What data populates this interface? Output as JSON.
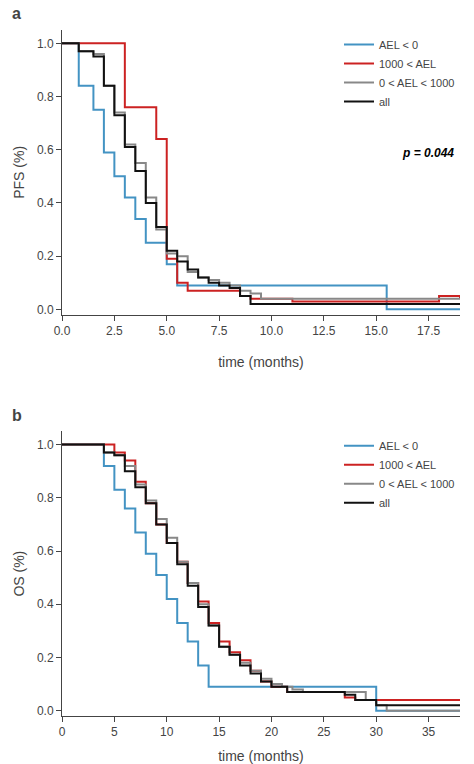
{
  "chart_data": [
    {
      "type": "line",
      "line_style": "step",
      "title": "a",
      "x_label": "time (months)",
      "y_label": "PFS (%)",
      "xlim": [
        0,
        19
      ],
      "ylim": [
        -0.02,
        1.05
      ],
      "xticks": [
        {
          "value": 0,
          "label": "0.0"
        },
        2.5,
        {
          "value": 5,
          "label": "5.0"
        },
        7.5,
        {
          "value": 10,
          "label": "10.0"
        },
        12.5,
        {
          "value": 15,
          "label": "15.0"
        },
        17.5
      ],
      "yticks": [
        {
          "value": 0,
          "label": "0.0"
        },
        0.2,
        0.4,
        0.6,
        0.8,
        {
          "value": 1,
          "label": "1.0"
        }
      ],
      "grid": false,
      "legend": "upper right",
      "annotations": [
        "p = 0.044"
      ],
      "series": [
        {
          "name": "AEL < 0",
          "color": "#4393C3",
          "x": [
            0,
            0.8,
            1.5,
            2.0,
            2.5,
            3.0,
            3.5,
            4.0,
            5.0,
            5.5,
            6.0,
            15.0,
            15.5,
            19
          ],
          "values": [
            1.0,
            0.84,
            0.75,
            0.59,
            0.5,
            0.42,
            0.34,
            0.25,
            0.17,
            0.09,
            0.09,
            0.09,
            0.0,
            0.0
          ]
        },
        {
          "name": "1000 < AEL",
          "color": "#CC2222",
          "x": [
            0,
            2.5,
            3.0,
            4.5,
            5.0,
            5.5,
            6.0,
            7.5,
            8.5,
            9.0,
            10.5,
            11.0,
            18.0,
            19
          ],
          "values": [
            1.0,
            1.0,
            0.76,
            0.64,
            0.19,
            0.1,
            0.07,
            0.07,
            0.05,
            0.04,
            0.04,
            0.03,
            0.05,
            0.04
          ]
        },
        {
          "name": "0 < AEL < 1000",
          "color": "#888888",
          "x": [
            0,
            0.8,
            1.5,
            2.0,
            2.5,
            3.0,
            3.5,
            4.0,
            4.5,
            5.0,
            5.5,
            6.0,
            6.5,
            7.0,
            7.5,
            8.0,
            8.5,
            9.0,
            9.5,
            10.0,
            19
          ],
          "values": [
            1.0,
            0.97,
            0.96,
            0.84,
            0.74,
            0.62,
            0.55,
            0.42,
            0.3,
            0.21,
            0.2,
            0.14,
            0.12,
            0.11,
            0.1,
            0.09,
            0.07,
            0.06,
            0.04,
            0.04,
            0.04
          ]
        },
        {
          "name": "all",
          "color": "#111111",
          "x": [
            0,
            0.8,
            1.5,
            2.0,
            2.5,
            3.0,
            3.5,
            4.0,
            4.5,
            5.0,
            5.5,
            6.0,
            6.5,
            7.0,
            7.5,
            8.0,
            8.5,
            9.0,
            19
          ],
          "values": [
            1.0,
            0.97,
            0.95,
            0.84,
            0.73,
            0.61,
            0.52,
            0.4,
            0.31,
            0.22,
            0.18,
            0.15,
            0.12,
            0.1,
            0.09,
            0.08,
            0.05,
            0.02,
            0.02
          ]
        }
      ]
    },
    {
      "type": "line",
      "line_style": "step",
      "title": "b",
      "x_label": "time (months)",
      "y_label": "OS (%)",
      "xlim": [
        0,
        38
      ],
      "ylim": [
        -0.02,
        1.05
      ],
      "xticks": [
        0,
        5,
        10,
        15,
        20,
        25,
        30,
        35
      ],
      "yticks": [
        {
          "value": 0,
          "label": "0.0"
        },
        0.2,
        0.4,
        0.6,
        0.8,
        {
          "value": 1,
          "label": "1.0"
        }
      ],
      "grid": false,
      "legend": "upper right",
      "series": [
        {
          "name": "AEL < 0",
          "color": "#4393C3",
          "x": [
            0,
            4.0,
            5.0,
            6.0,
            7.0,
            8.0,
            9.0,
            10.0,
            11.0,
            12.0,
            13.0,
            14.0,
            15.0,
            16.5,
            22.0,
            29.0,
            30.0,
            38
          ],
          "values": [
            1.0,
            0.92,
            0.83,
            0.76,
            0.67,
            0.59,
            0.51,
            0.42,
            0.33,
            0.26,
            0.17,
            0.09,
            0.09,
            0.09,
            0.09,
            0.09,
            0.0,
            0.0
          ]
        },
        {
          "name": "1000 < AEL",
          "color": "#CC2222",
          "x": [
            0,
            3.5,
            5.0,
            6.0,
            7.0,
            8.0,
            9.0,
            10.0,
            11.0,
            12.0,
            13.0,
            14.0,
            15.0,
            16.0,
            17.0,
            18.0,
            19.0,
            20.0,
            21.5,
            27.0,
            28.0,
            37.0,
            38
          ],
          "values": [
            1.0,
            1.0,
            0.97,
            0.94,
            0.86,
            0.78,
            0.7,
            0.63,
            0.56,
            0.48,
            0.41,
            0.33,
            0.26,
            0.22,
            0.19,
            0.15,
            0.11,
            0.09,
            0.07,
            0.05,
            0.04,
            0.04,
            0.04
          ]
        },
        {
          "name": "0 < AEL < 1000",
          "color": "#888888",
          "x": [
            0,
            4.0,
            5.0,
            6.0,
            7.0,
            8.0,
            9.0,
            10.0,
            11.0,
            12.0,
            13.0,
            14.0,
            15.0,
            16.0,
            17.0,
            18.0,
            19.0,
            20.0,
            21.0,
            22.0,
            23.0,
            27.0,
            29.0,
            30.0,
            31.0,
            38
          ],
          "values": [
            1.0,
            0.97,
            0.96,
            0.92,
            0.85,
            0.79,
            0.72,
            0.65,
            0.56,
            0.48,
            0.4,
            0.32,
            0.24,
            0.21,
            0.18,
            0.15,
            0.12,
            0.1,
            0.09,
            0.08,
            0.07,
            0.07,
            0.04,
            0.02,
            0.0,
            0.0
          ]
        },
        {
          "name": "all",
          "color": "#111111",
          "x": [
            0,
            4.0,
            5.0,
            6.0,
            7.0,
            8.0,
            9.0,
            10.0,
            11.0,
            12.0,
            13.0,
            14.0,
            15.0,
            16.0,
            17.0,
            18.0,
            19.0,
            20.0,
            21.5,
            27.0,
            28.0,
            30.0,
            38
          ],
          "values": [
            1.0,
            0.97,
            0.96,
            0.9,
            0.84,
            0.78,
            0.7,
            0.63,
            0.55,
            0.47,
            0.39,
            0.32,
            0.24,
            0.21,
            0.17,
            0.14,
            0.11,
            0.09,
            0.07,
            0.06,
            0.04,
            0.02,
            0.02
          ]
        }
      ]
    }
  ]
}
